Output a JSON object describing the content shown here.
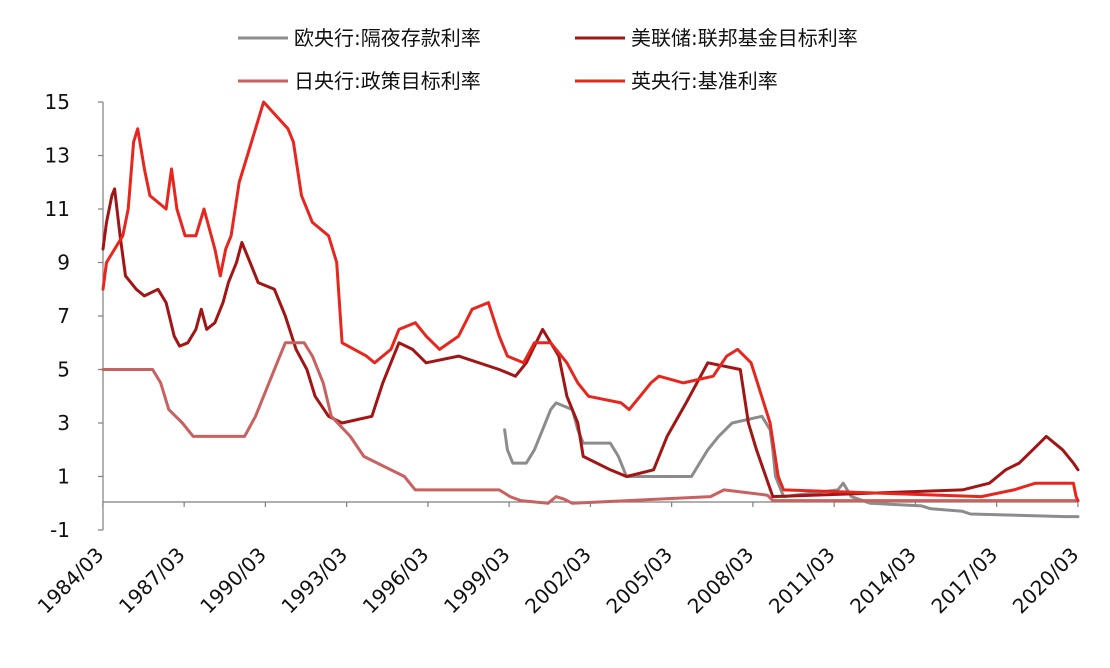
{
  "chart_data": {
    "type": "line",
    "title": "",
    "xlabel": "",
    "ylabel": "",
    "x_tick_labels": [
      "1984/03",
      "1987/03",
      "1990/03",
      "1993/03",
      "1996/03",
      "1999/03",
      "2002/03",
      "2005/03",
      "2008/03",
      "2011/03",
      "2014/03",
      "2017/03",
      "2020/03"
    ],
    "y_tick_labels": [
      "15",
      "13",
      "11",
      "9",
      "7",
      "5",
      "3",
      "1",
      "-1"
    ],
    "xlim": [
      1984.17,
      2020.17
    ],
    "ylim": [
      -1,
      15
    ],
    "grid": false,
    "legend_position": "top",
    "legend": [
      {
        "name": "欧央行:隔夜存款利率",
        "color": "#8c8c8c"
      },
      {
        "name": "美联储:联邦基金目标利率",
        "color": "#a31515"
      },
      {
        "name": "日央行:政策目标利率",
        "color": "#c8615f"
      },
      {
        "name": "英央行:基准利率",
        "color": "#e8261e"
      }
    ],
    "series": [
      {
        "name": "欧央行:隔夜存款利率",
        "color": "#8c8c8c",
        "points": [
          [
            1999.0,
            2.75
          ],
          [
            1999.1,
            2.0
          ],
          [
            1999.3,
            1.5
          ],
          [
            1999.8,
            1.5
          ],
          [
            2000.1,
            2.0
          ],
          [
            2000.4,
            2.75
          ],
          [
            2000.7,
            3.5
          ],
          [
            2000.9,
            3.75
          ],
          [
            2001.5,
            3.5
          ],
          [
            2001.7,
            2.75
          ],
          [
            2001.9,
            2.25
          ],
          [
            2002.9,
            2.25
          ],
          [
            2003.2,
            1.75
          ],
          [
            2003.5,
            1.0
          ],
          [
            2005.9,
            1.0
          ],
          [
            2006.2,
            1.5
          ],
          [
            2006.5,
            2.0
          ],
          [
            2006.9,
            2.5
          ],
          [
            2007.4,
            3.0
          ],
          [
            2008.5,
            3.25
          ],
          [
            2008.8,
            2.75
          ],
          [
            2008.9,
            2.0
          ],
          [
            2009.0,
            1.0
          ],
          [
            2009.3,
            0.25
          ],
          [
            2011.3,
            0.5
          ],
          [
            2011.5,
            0.75
          ],
          [
            2011.8,
            0.25
          ],
          [
            2012.5,
            0.0
          ],
          [
            2014.4,
            -0.1
          ],
          [
            2014.7,
            -0.2
          ],
          [
            2015.9,
            -0.3
          ],
          [
            2016.2,
            -0.4
          ],
          [
            2019.7,
            -0.5
          ],
          [
            2020.17,
            -0.5
          ]
        ]
      },
      {
        "name": "美联储:联邦基金目标利率",
        "color": "#a31515",
        "points": [
          [
            1984.17,
            9.5
          ],
          [
            1984.3,
            10.5
          ],
          [
            1984.5,
            11.5
          ],
          [
            1984.6,
            11.75
          ],
          [
            1984.8,
            10.0
          ],
          [
            1985.0,
            8.5
          ],
          [
            1985.4,
            8.0
          ],
          [
            1985.7,
            7.75
          ],
          [
            1986.2,
            8.0
          ],
          [
            1986.5,
            7.5
          ],
          [
            1986.8,
            6.25
          ],
          [
            1987.0,
            5.875
          ],
          [
            1987.3,
            6.0
          ],
          [
            1987.6,
            6.5
          ],
          [
            1987.8,
            7.25
          ],
          [
            1988.0,
            6.5
          ],
          [
            1988.3,
            6.75
          ],
          [
            1988.6,
            7.5
          ],
          [
            1988.8,
            8.25
          ],
          [
            1989.1,
            9.0
          ],
          [
            1989.3,
            9.75
          ],
          [
            1989.6,
            9.0
          ],
          [
            1989.9,
            8.25
          ],
          [
            1990.5,
            8.0
          ],
          [
            1990.9,
            7.0
          ],
          [
            1991.3,
            5.75
          ],
          [
            1991.7,
            5.0
          ],
          [
            1992.0,
            4.0
          ],
          [
            1992.5,
            3.25
          ],
          [
            1993.0,
            3.0
          ],
          [
            1994.1,
            3.25
          ],
          [
            1994.5,
            4.5
          ],
          [
            1994.9,
            5.5
          ],
          [
            1995.1,
            6.0
          ],
          [
            1995.6,
            5.75
          ],
          [
            1996.1,
            5.25
          ],
          [
            1997.3,
            5.5
          ],
          [
            1998.8,
            5.0
          ],
          [
            1999.4,
            4.75
          ],
          [
            1999.8,
            5.25
          ],
          [
            2000.4,
            6.5
          ],
          [
            2001.0,
            5.5
          ],
          [
            2001.3,
            4.0
          ],
          [
            2001.7,
            3.0
          ],
          [
            2001.9,
            1.75
          ],
          [
            2002.9,
            1.25
          ],
          [
            2003.5,
            1.0
          ],
          [
            2004.5,
            1.25
          ],
          [
            2005.0,
            2.5
          ],
          [
            2005.7,
            3.75
          ],
          [
            2006.5,
            5.25
          ],
          [
            2007.7,
            5.0
          ],
          [
            2008.0,
            3.0
          ],
          [
            2008.3,
            2.0
          ],
          [
            2008.9,
            0.25
          ],
          [
            2015.9,
            0.5
          ],
          [
            2016.9,
            0.75
          ],
          [
            2017.2,
            1.0
          ],
          [
            2017.5,
            1.25
          ],
          [
            2018.0,
            1.5
          ],
          [
            2018.5,
            2.0
          ],
          [
            2019.0,
            2.5
          ],
          [
            2019.6,
            2.0
          ],
          [
            2020.0,
            1.5
          ],
          [
            2020.17,
            1.25
          ]
        ]
      },
      {
        "name": "日央行:政策目标利率",
        "color": "#c8615f",
        "points": [
          [
            1984.17,
            5.0
          ],
          [
            1986.0,
            5.0
          ],
          [
            1986.3,
            4.5
          ],
          [
            1986.6,
            3.5
          ],
          [
            1987.1,
            3.0
          ],
          [
            1987.5,
            2.5
          ],
          [
            1989.4,
            2.5
          ],
          [
            1989.8,
            3.25
          ],
          [
            1990.2,
            4.25
          ],
          [
            1990.6,
            5.25
          ],
          [
            1990.9,
            6.0
          ],
          [
            1991.6,
            6.0
          ],
          [
            1991.9,
            5.5
          ],
          [
            1992.3,
            4.5
          ],
          [
            1992.6,
            3.25
          ],
          [
            1993.3,
            2.5
          ],
          [
            1993.8,
            1.75
          ],
          [
            1995.3,
            1.0
          ],
          [
            1995.7,
            0.5
          ],
          [
            1998.8,
            0.5
          ],
          [
            1999.2,
            0.25
          ],
          [
            1999.6,
            0.1
          ],
          [
            2000.6,
            0.0
          ],
          [
            2000.9,
            0.25
          ],
          [
            2001.2,
            0.15
          ],
          [
            2001.5,
            0.0
          ],
          [
            2006.6,
            0.25
          ],
          [
            2007.1,
            0.5
          ],
          [
            2008.7,
            0.3
          ],
          [
            2008.9,
            0.1
          ],
          [
            2020.17,
            0.1
          ]
        ]
      },
      {
        "name": "英央行:基准利率",
        "color": "#e8261e",
        "points": [
          [
            1984.17,
            8.0
          ],
          [
            1984.3,
            9.0
          ],
          [
            1984.6,
            9.5
          ],
          [
            1984.9,
            10.0
          ],
          [
            1985.1,
            11.0
          ],
          [
            1985.3,
            13.5
          ],
          [
            1985.45,
            14.0
          ],
          [
            1985.7,
            12.5
          ],
          [
            1985.9,
            11.5
          ],
          [
            1986.5,
            11.0
          ],
          [
            1986.7,
            12.5
          ],
          [
            1986.9,
            11.0
          ],
          [
            1987.2,
            10.0
          ],
          [
            1987.6,
            10.0
          ],
          [
            1987.9,
            11.0
          ],
          [
            1988.3,
            9.5
          ],
          [
            1988.5,
            8.5
          ],
          [
            1988.7,
            9.5
          ],
          [
            1988.9,
            10.0
          ],
          [
            1989.2,
            12.0
          ],
          [
            1989.5,
            13.0
          ],
          [
            1989.8,
            14.0
          ],
          [
            1990.1,
            15.0
          ],
          [
            1991.0,
            14.0
          ],
          [
            1991.2,
            13.5
          ],
          [
            1991.5,
            11.5
          ],
          [
            1991.9,
            10.5
          ],
          [
            1992.5,
            10.0
          ],
          [
            1992.8,
            9.0
          ],
          [
            1993.0,
            6.0
          ],
          [
            1993.9,
            5.5
          ],
          [
            1994.2,
            5.25
          ],
          [
            1994.8,
            5.75
          ],
          [
            1995.1,
            6.5
          ],
          [
            1995.7,
            6.75
          ],
          [
            1996.1,
            6.25
          ],
          [
            1996.6,
            5.75
          ],
          [
            1997.3,
            6.25
          ],
          [
            1997.8,
            7.25
          ],
          [
            1998.4,
            7.5
          ],
          [
            1998.8,
            6.25
          ],
          [
            1999.1,
            5.5
          ],
          [
            1999.7,
            5.25
          ],
          [
            2000.1,
            6.0
          ],
          [
            2000.7,
            6.0
          ],
          [
            2001.3,
            5.25
          ],
          [
            2001.7,
            4.5
          ],
          [
            2002.1,
            4.0
          ],
          [
            2003.3,
            3.75
          ],
          [
            2003.6,
            3.5
          ],
          [
            2004.0,
            4.0
          ],
          [
            2004.4,
            4.5
          ],
          [
            2004.7,
            4.75
          ],
          [
            2005.6,
            4.5
          ],
          [
            2006.7,
            4.75
          ],
          [
            2007.2,
            5.5
          ],
          [
            2007.6,
            5.75
          ],
          [
            2008.1,
            5.25
          ],
          [
            2008.8,
            3.0
          ],
          [
            2009.1,
            1.0
          ],
          [
            2009.3,
            0.5
          ],
          [
            2016.6,
            0.25
          ],
          [
            2017.8,
            0.5
          ],
          [
            2018.6,
            0.75
          ],
          [
            2020.0,
            0.75
          ],
          [
            2020.1,
            0.25
          ],
          [
            2020.17,
            0.1
          ]
        ]
      }
    ]
  }
}
